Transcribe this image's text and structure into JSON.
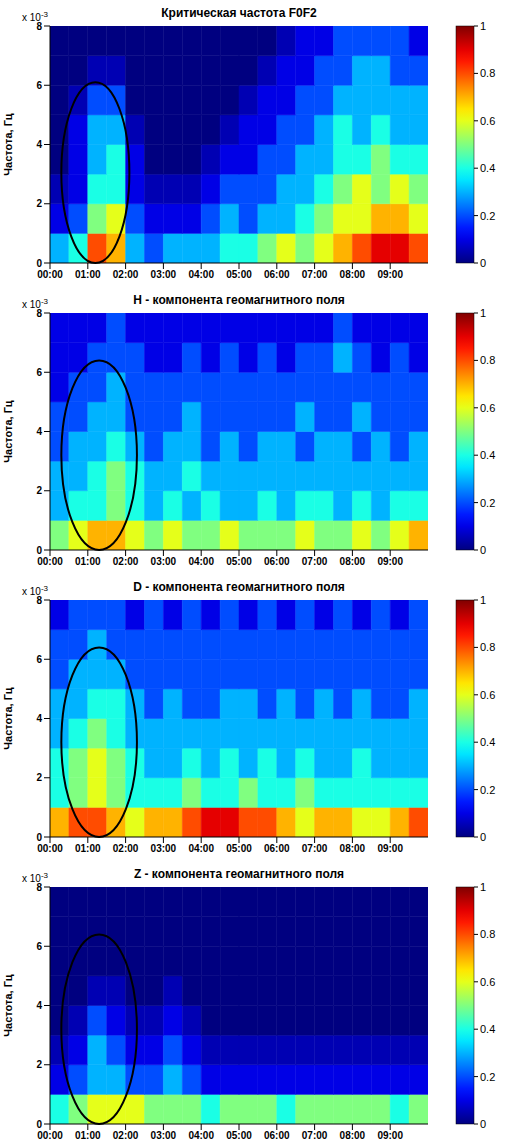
{
  "chart_data": [
    {
      "type": "heatmap",
      "title": "Критическая частота F0F2",
      "ylabel": "Частота, Гц",
      "y_scale_label": "x 10",
      "y_scale_exponent": "-3",
      "xlim": [
        0,
        10
      ],
      "xticks": [
        {
          "value": 0,
          "label": "00:00"
        },
        {
          "value": 1,
          "label": "01:00"
        },
        {
          "value": 2,
          "label": "02:00"
        },
        {
          "value": 3,
          "label": "03:00"
        },
        {
          "value": 4,
          "label": "04:00"
        },
        {
          "value": 5,
          "label": "05:00"
        },
        {
          "value": 6,
          "label": "06:00"
        },
        {
          "value": 7,
          "label": "07:00"
        },
        {
          "value": 8,
          "label": "08:00"
        },
        {
          "value": 9,
          "label": "09:00"
        }
      ],
      "ylim": [
        0,
        8
      ],
      "yticks": [
        0,
        2,
        4,
        6,
        8
      ],
      "x_edges": [
        0,
        0.5,
        1,
        1.5,
        2,
        2.5,
        3,
        3.5,
        4,
        4.5,
        5,
        5.5,
        6,
        6.5,
        7,
        7.5,
        8,
        8.5,
        9,
        9.5,
        10
      ],
      "y_edges": [
        0,
        1,
        2,
        3,
        4,
        5,
        6,
        7,
        8
      ],
      "cells": [
        [
          0.3,
          0.4,
          0.8,
          0.7,
          0.3,
          0.2,
          0.3,
          0.3,
          0.3,
          0.4,
          0.4,
          0.5,
          0.6,
          0.5,
          0.6,
          0.7,
          0.8,
          0.9,
          0.9,
          0.8
        ],
        [
          0.1,
          0.2,
          0.5,
          0.6,
          0.2,
          0.1,
          0.1,
          0.1,
          0.2,
          0.3,
          0.2,
          0.3,
          0.3,
          0.4,
          0.5,
          0.6,
          0.6,
          0.7,
          0.7,
          0.6
        ],
        [
          0.05,
          0.1,
          0.4,
          0.4,
          0.1,
          0.05,
          0.05,
          0.05,
          0.1,
          0.2,
          0.2,
          0.2,
          0.3,
          0.3,
          0.4,
          0.5,
          0.6,
          0.5,
          0.6,
          0.5
        ],
        [
          0,
          0.1,
          0.3,
          0.4,
          0.1,
          0,
          0,
          0,
          0.05,
          0.1,
          0.1,
          0.2,
          0.2,
          0.3,
          0.3,
          0.4,
          0.4,
          0.5,
          0.4,
          0.4
        ],
        [
          0,
          0.1,
          0.3,
          0.3,
          0.05,
          0,
          0,
          0,
          0,
          0.05,
          0.1,
          0.1,
          0.2,
          0.2,
          0.3,
          0.4,
          0.3,
          0.4,
          0.3,
          0.3
        ],
        [
          0,
          0.05,
          0.2,
          0.2,
          0,
          0,
          0,
          0,
          0,
          0,
          0.05,
          0.1,
          0.1,
          0.2,
          0.2,
          0.3,
          0.3,
          0.3,
          0.3,
          0.3
        ],
        [
          0,
          0,
          0.05,
          0.05,
          0,
          0,
          0,
          0,
          0,
          0,
          0,
          0.05,
          0.1,
          0.1,
          0.2,
          0.2,
          0.3,
          0.3,
          0.2,
          0.2
        ],
        [
          0,
          0,
          0,
          0,
          0,
          0,
          0,
          0,
          0,
          0,
          0,
          0,
          0.05,
          0.1,
          0.1,
          0.2,
          0.2,
          0.2,
          0.2,
          0.1
        ]
      ],
      "colorbar": {
        "range": [
          0,
          1
        ],
        "ticks": [
          0,
          0.2,
          0.4,
          0.6,
          0.8,
          1
        ]
      },
      "highlight": {
        "x": [
          0.3,
          2.1
        ],
        "y": [
          0,
          6.1
        ]
      }
    },
    {
      "type": "heatmap",
      "title": "H - компонента геомагнитного поля",
      "ylabel": "Частота, Гц",
      "y_scale_label": "x 10",
      "y_scale_exponent": "-3",
      "xlim": [
        0,
        10
      ],
      "xticks": [
        {
          "value": 0,
          "label": "00:00"
        },
        {
          "value": 1,
          "label": "01:00"
        },
        {
          "value": 2,
          "label": "02:00"
        },
        {
          "value": 3,
          "label": "03:00"
        },
        {
          "value": 4,
          "label": "04:00"
        },
        {
          "value": 5,
          "label": "05:00"
        },
        {
          "value": 6,
          "label": "06:00"
        },
        {
          "value": 7,
          "label": "07:00"
        },
        {
          "value": 8,
          "label": "08:00"
        },
        {
          "value": 9,
          "label": "09:00"
        }
      ],
      "ylim": [
        0,
        8
      ],
      "yticks": [
        0,
        2,
        4,
        6,
        8
      ],
      "x_edges": [
        0,
        0.5,
        1,
        1.5,
        2,
        2.5,
        3,
        3.5,
        4,
        4.5,
        5,
        5.5,
        6,
        6.5,
        7,
        7.5,
        8,
        8.5,
        9,
        9.5,
        10
      ],
      "y_edges": [
        0,
        1,
        2,
        3,
        4,
        5,
        6,
        7,
        8
      ],
      "cells": [
        [
          0.5,
          0.6,
          0.7,
          0.7,
          0.6,
          0.5,
          0.6,
          0.5,
          0.5,
          0.6,
          0.5,
          0.5,
          0.5,
          0.6,
          0.5,
          0.5,
          0.6,
          0.5,
          0.6,
          0.7
        ],
        [
          0.3,
          0.4,
          0.4,
          0.5,
          0.4,
          0.3,
          0.4,
          0.3,
          0.4,
          0.3,
          0.3,
          0.4,
          0.3,
          0.4,
          0.4,
          0.3,
          0.4,
          0.3,
          0.4,
          0.4
        ],
        [
          0.3,
          0.3,
          0.4,
          0.5,
          0.4,
          0.3,
          0.3,
          0.4,
          0.3,
          0.3,
          0.3,
          0.3,
          0.3,
          0.3,
          0.3,
          0.3,
          0.3,
          0.3,
          0.3,
          0.3
        ],
        [
          0.2,
          0.3,
          0.3,
          0.4,
          0.3,
          0.2,
          0.3,
          0.3,
          0.2,
          0.3,
          0.2,
          0.3,
          0.3,
          0.2,
          0.3,
          0.3,
          0.2,
          0.3,
          0.2,
          0.3
        ],
        [
          0.2,
          0.2,
          0.3,
          0.3,
          0.2,
          0.2,
          0.2,
          0.3,
          0.2,
          0.2,
          0.2,
          0.2,
          0.2,
          0.3,
          0.2,
          0.2,
          0.3,
          0.2,
          0.2,
          0.2
        ],
        [
          0.1,
          0.2,
          0.2,
          0.3,
          0.2,
          0.2,
          0.2,
          0.2,
          0.2,
          0.2,
          0.2,
          0.2,
          0.2,
          0.2,
          0.2,
          0.2,
          0.2,
          0.2,
          0.2,
          0.2
        ],
        [
          0.1,
          0.1,
          0.2,
          0.2,
          0.2,
          0.1,
          0.1,
          0.2,
          0.1,
          0.2,
          0.1,
          0.2,
          0.1,
          0.2,
          0.2,
          0.3,
          0.2,
          0.1,
          0.2,
          0.1
        ],
        [
          0.1,
          0.1,
          0.1,
          0.2,
          0.1,
          0.1,
          0.1,
          0.1,
          0.1,
          0.1,
          0.1,
          0.1,
          0.1,
          0.1,
          0.1,
          0.2,
          0.1,
          0.1,
          0.1,
          0.1
        ]
      ],
      "colorbar": {
        "range": [
          0,
          1
        ],
        "ticks": [
          0,
          0.2,
          0.4,
          0.6,
          0.8,
          1
        ]
      },
      "highlight": {
        "x": [
          0.3,
          2.3
        ],
        "y": [
          0,
          6.4
        ]
      }
    },
    {
      "type": "heatmap",
      "title": "D - компонента геомагнитного поля",
      "ylabel": "Частота, Гц",
      "y_scale_label": "x 10",
      "y_scale_exponent": "-3",
      "xlim": [
        0,
        10
      ],
      "xticks": [
        {
          "value": 0,
          "label": "00:00"
        },
        {
          "value": 1,
          "label": "01:00"
        },
        {
          "value": 2,
          "label": "02:00"
        },
        {
          "value": 3,
          "label": "03:00"
        },
        {
          "value": 4,
          "label": "04:00"
        },
        {
          "value": 5,
          "label": "05:00"
        },
        {
          "value": 6,
          "label": "06:00"
        },
        {
          "value": 7,
          "label": "07:00"
        },
        {
          "value": 8,
          "label": "08:00"
        },
        {
          "value": 9,
          "label": "09:00"
        }
      ],
      "ylim": [
        0,
        8
      ],
      "yticks": [
        0,
        2,
        4,
        6,
        8
      ],
      "x_edges": [
        0,
        0.5,
        1,
        1.5,
        2,
        2.5,
        3,
        3.5,
        4,
        4.5,
        5,
        5.5,
        6,
        6.5,
        7,
        7.5,
        8,
        8.5,
        9,
        9.5,
        10
      ],
      "y_edges": [
        0,
        1,
        2,
        3,
        4,
        5,
        6,
        7,
        8
      ],
      "cells": [
        [
          0.7,
          0.8,
          0.8,
          0.7,
          0.6,
          0.7,
          0.7,
          0.8,
          0.9,
          0.9,
          0.8,
          0.8,
          0.7,
          0.6,
          0.7,
          0.7,
          0.6,
          0.6,
          0.7,
          0.8
        ],
        [
          0.4,
          0.5,
          0.6,
          0.5,
          0.4,
          0.4,
          0.4,
          0.5,
          0.4,
          0.4,
          0.5,
          0.4,
          0.4,
          0.5,
          0.4,
          0.4,
          0.4,
          0.4,
          0.4,
          0.4
        ],
        [
          0.4,
          0.5,
          0.6,
          0.5,
          0.4,
          0.3,
          0.3,
          0.4,
          0.3,
          0.4,
          0.3,
          0.4,
          0.3,
          0.4,
          0.3,
          0.3,
          0.4,
          0.3,
          0.3,
          0.3
        ],
        [
          0.3,
          0.4,
          0.5,
          0.4,
          0.3,
          0.3,
          0.3,
          0.3,
          0.3,
          0.3,
          0.3,
          0.3,
          0.3,
          0.3,
          0.3,
          0.3,
          0.3,
          0.3,
          0.3,
          0.3
        ],
        [
          0.3,
          0.3,
          0.4,
          0.4,
          0.3,
          0.2,
          0.3,
          0.2,
          0.2,
          0.3,
          0.3,
          0.2,
          0.3,
          0.2,
          0.3,
          0.2,
          0.3,
          0.2,
          0.2,
          0.3
        ],
        [
          0.2,
          0.3,
          0.3,
          0.3,
          0.2,
          0.2,
          0.2,
          0.2,
          0.2,
          0.2,
          0.2,
          0.2,
          0.2,
          0.2,
          0.2,
          0.2,
          0.2,
          0.2,
          0.2,
          0.2
        ],
        [
          0.2,
          0.2,
          0.3,
          0.2,
          0.2,
          0.2,
          0.2,
          0.2,
          0.2,
          0.2,
          0.2,
          0.2,
          0.2,
          0.2,
          0.2,
          0.2,
          0.2,
          0.2,
          0.2,
          0.2
        ],
        [
          0.1,
          0.2,
          0.2,
          0.2,
          0.1,
          0.2,
          0.1,
          0.2,
          0.1,
          0.2,
          0.1,
          0.2,
          0.1,
          0.2,
          0.1,
          0.2,
          0.1,
          0.2,
          0.1,
          0.2
        ]
      ],
      "colorbar": {
        "range": [
          0,
          1
        ],
        "ticks": [
          0,
          0.2,
          0.4,
          0.6,
          0.8,
          1
        ]
      },
      "highlight": {
        "x": [
          0.3,
          2.3
        ],
        "y": [
          0,
          6.4
        ]
      }
    },
    {
      "type": "heatmap",
      "title": "Z - компонента геомагнитного поля",
      "ylabel": "Частота, Гц",
      "y_scale_label": "x 10",
      "y_scale_exponent": "-3",
      "xlim": [
        0,
        10
      ],
      "xticks": [
        {
          "value": 0,
          "label": "00:00"
        },
        {
          "value": 1,
          "label": "01:00"
        },
        {
          "value": 2,
          "label": "02:00"
        },
        {
          "value": 3,
          "label": "03:00"
        },
        {
          "value": 4,
          "label": "04:00"
        },
        {
          "value": 5,
          "label": "05:00"
        },
        {
          "value": 6,
          "label": "06:00"
        },
        {
          "value": 7,
          "label": "07:00"
        },
        {
          "value": 8,
          "label": "08:00"
        },
        {
          "value": 9,
          "label": "09:00"
        }
      ],
      "ylim": [
        0,
        8
      ],
      "yticks": [
        0,
        2,
        4,
        6,
        8
      ],
      "x_edges": [
        0,
        0.5,
        1,
        1.5,
        2,
        2.5,
        3,
        3.5,
        4,
        4.5,
        5,
        5.5,
        6,
        6.5,
        7,
        7.5,
        8,
        8.5,
        9,
        9.5,
        10
      ],
      "y_edges": [
        0,
        1,
        2,
        3,
        4,
        5,
        6,
        7,
        8
      ],
      "cells": [
        [
          0.4,
          0.5,
          0.6,
          0.6,
          0.6,
          0.5,
          0.5,
          0.5,
          0.4,
          0.5,
          0.5,
          0.5,
          0.4,
          0.5,
          0.5,
          0.5,
          0.5,
          0.5,
          0.4,
          0.5
        ],
        [
          0.1,
          0.2,
          0.3,
          0.3,
          0.2,
          0.2,
          0.3,
          0.2,
          0.1,
          0.1,
          0.1,
          0.1,
          0.1,
          0.1,
          0.1,
          0.1,
          0.1,
          0.1,
          0.1,
          0.1
        ],
        [
          0.05,
          0.1,
          0.3,
          0.2,
          0.1,
          0.1,
          0.2,
          0.1,
          0.05,
          0.05,
          0.05,
          0.05,
          0.05,
          0.05,
          0.05,
          0.05,
          0.05,
          0.05,
          0.05,
          0.05
        ],
        [
          0,
          0.05,
          0.2,
          0.1,
          0.05,
          0.05,
          0.1,
          0.05,
          0,
          0,
          0,
          0,
          0,
          0,
          0,
          0,
          0,
          0,
          0,
          0
        ],
        [
          0,
          0,
          0.05,
          0.05,
          0,
          0,
          0.05,
          0,
          0,
          0,
          0,
          0,
          0,
          0,
          0,
          0,
          0,
          0,
          0,
          0
        ],
        [
          0,
          0,
          0,
          0,
          0,
          0,
          0,
          0,
          0,
          0,
          0,
          0,
          0,
          0,
          0,
          0,
          0,
          0,
          0,
          0
        ],
        [
          0,
          0,
          0,
          0,
          0,
          0,
          0,
          0,
          0,
          0,
          0,
          0,
          0,
          0,
          0,
          0,
          0,
          0,
          0,
          0
        ],
        [
          0,
          0,
          0,
          0,
          0,
          0,
          0,
          0,
          0,
          0,
          0,
          0,
          0,
          0,
          0,
          0,
          0,
          0,
          0,
          0
        ]
      ],
      "colorbar": {
        "range": [
          0,
          1
        ],
        "ticks": [
          0,
          0.2,
          0.4,
          0.6,
          0.8,
          1
        ]
      },
      "highlight": {
        "x": [
          0.3,
          2.3
        ],
        "y": [
          0,
          6.4
        ]
      }
    }
  ]
}
